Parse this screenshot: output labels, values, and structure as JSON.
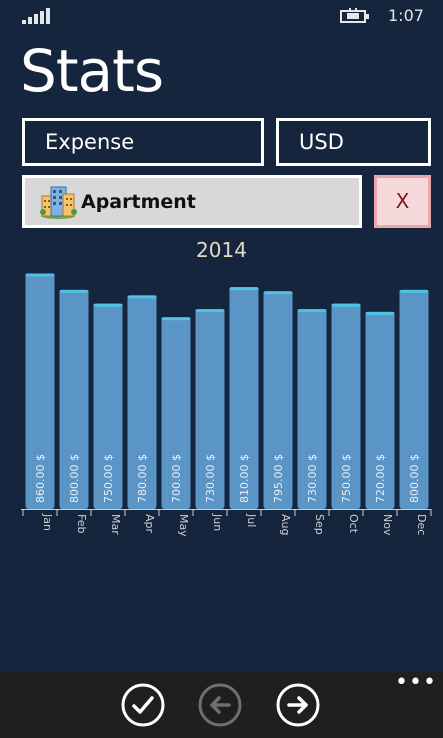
{
  "status_bar": {
    "time": "1:07",
    "icons": [
      "signal-icon",
      "battery-charging-icon"
    ]
  },
  "page": {
    "title": "Stats"
  },
  "filters": {
    "type_label": "Expense",
    "currency_label": "USD",
    "category_label": "Apartment",
    "category_icon": "building-icon",
    "clear_label": "X"
  },
  "chart_data": {
    "type": "bar",
    "title": "2014",
    "categories": [
      "Jan",
      "Feb",
      "Mar",
      "Apr",
      "May",
      "Jun",
      "Jul",
      "Aug",
      "Sep",
      "Oct",
      "Nov",
      "Dec"
    ],
    "values": [
      860,
      800,
      750,
      780,
      700,
      730,
      810,
      795,
      730,
      750,
      720,
      800
    ],
    "value_labels": [
      "860.00 $",
      "800.00 $",
      "750.00 $",
      "780.00 $",
      "700.00 $",
      "730.00 $",
      "810.00 $",
      "795.00 $",
      "730.00 $",
      "750.00 $",
      "720.00 $",
      "800.00 $"
    ],
    "ylim": [
      0,
      880
    ],
    "grid": false,
    "colors": {
      "bar": "#5a95c6",
      "bar_top": "#4fc3e6",
      "axis": "#d0d0d0",
      "label": "#e8eef5"
    }
  },
  "app_bar": {
    "buttons": [
      {
        "name": "confirm",
        "icon": "check-icon"
      },
      {
        "name": "previous",
        "icon": "arrow-left-icon"
      },
      {
        "name": "next",
        "icon": "arrow-right-icon"
      }
    ],
    "more": "•••"
  }
}
